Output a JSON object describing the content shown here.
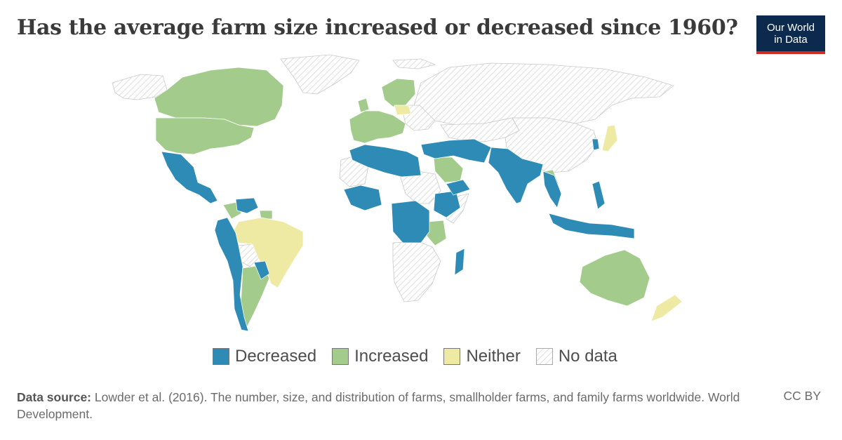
{
  "title": "Has the average farm size increased or decreased since 1960?",
  "logo": {
    "line1": "Our World",
    "line2": "in Data"
  },
  "legend": [
    {
      "label": "Decreased",
      "color": "#2e8bb6"
    },
    {
      "label": "Increased",
      "color": "#a2cb8c"
    },
    {
      "label": "Neither",
      "color": "#eeeaa3"
    },
    {
      "label": "No data",
      "color": "hatched"
    }
  ],
  "footer": {
    "source_label": "Data source:",
    "source_text": "Lowder et al. (2016). The number, size, and distribution of farms, smallholder farms, and family farms worldwide. World Development.",
    "license": "CC BY"
  },
  "map_data": {
    "categories": {
      "decreased": [
        "Mexico",
        "Guatemala",
        "Honduras",
        "Nicaragua",
        "Panama",
        "Venezuela",
        "Colombia (west)",
        "Ecuador",
        "Peru",
        "Chile",
        "Paraguay",
        "Uruguay",
        "Morocco",
        "Algeria",
        "Libya",
        "Egypt",
        "Turkey",
        "Iran",
        "Afghanistan",
        "Pakistan",
        "India",
        "Bangladesh",
        "Nepal",
        "Myanmar",
        "Thailand",
        "Cambodia",
        "Vietnam",
        "Philippines",
        "Indonesia",
        "Papua New Guinea",
        "Ethiopia",
        "Democratic Republic of Congo",
        "Cameroon",
        "Central African Republic",
        "Chad",
        "Mali",
        "Niger",
        "Nigeria",
        "Ghana",
        "Guinea",
        "Senegal",
        "Oman",
        "Yemen",
        "Madagascar",
        "Iraq",
        "Syria",
        "Greece",
        "South Korea",
        "Sri Lanka",
        "Malawi",
        "Zambia"
      ],
      "increased": [
        "Canada",
        "United States",
        "Greenland (east coast)",
        "United Kingdom",
        "Ireland",
        "France",
        "Spain",
        "Portugal",
        "Germany",
        "Netherlands",
        "Belgium",
        "Denmark",
        "Norway",
        "Sweden",
        "Finland",
        "Italy",
        "Austria",
        "Hungary",
        "Czechia",
        "Switzerland",
        "Saudi Arabia",
        "Tanzania",
        "Argentina",
        "Australia",
        "Laos",
        "Colombia (east)",
        "Guyana",
        "Suriname",
        "Uganda"
      ],
      "neither": [
        "Brazil",
        "Poland",
        "Japan",
        "New Zealand",
        "Liberia"
      ],
      "no_data": [
        "Russia",
        "China",
        "Kazakhstan",
        "Mongolia",
        "Greenland",
        "Sudan",
        "Mauritania",
        "Western Sahara",
        "Angola",
        "Namibia",
        "South Africa",
        "Botswana",
        "Zimbabwe",
        "Mozambique",
        "Kenya",
        "Somalia",
        "Bolivia",
        "Central Asia",
        "Eastern Europe",
        "Alaska"
      ]
    }
  }
}
